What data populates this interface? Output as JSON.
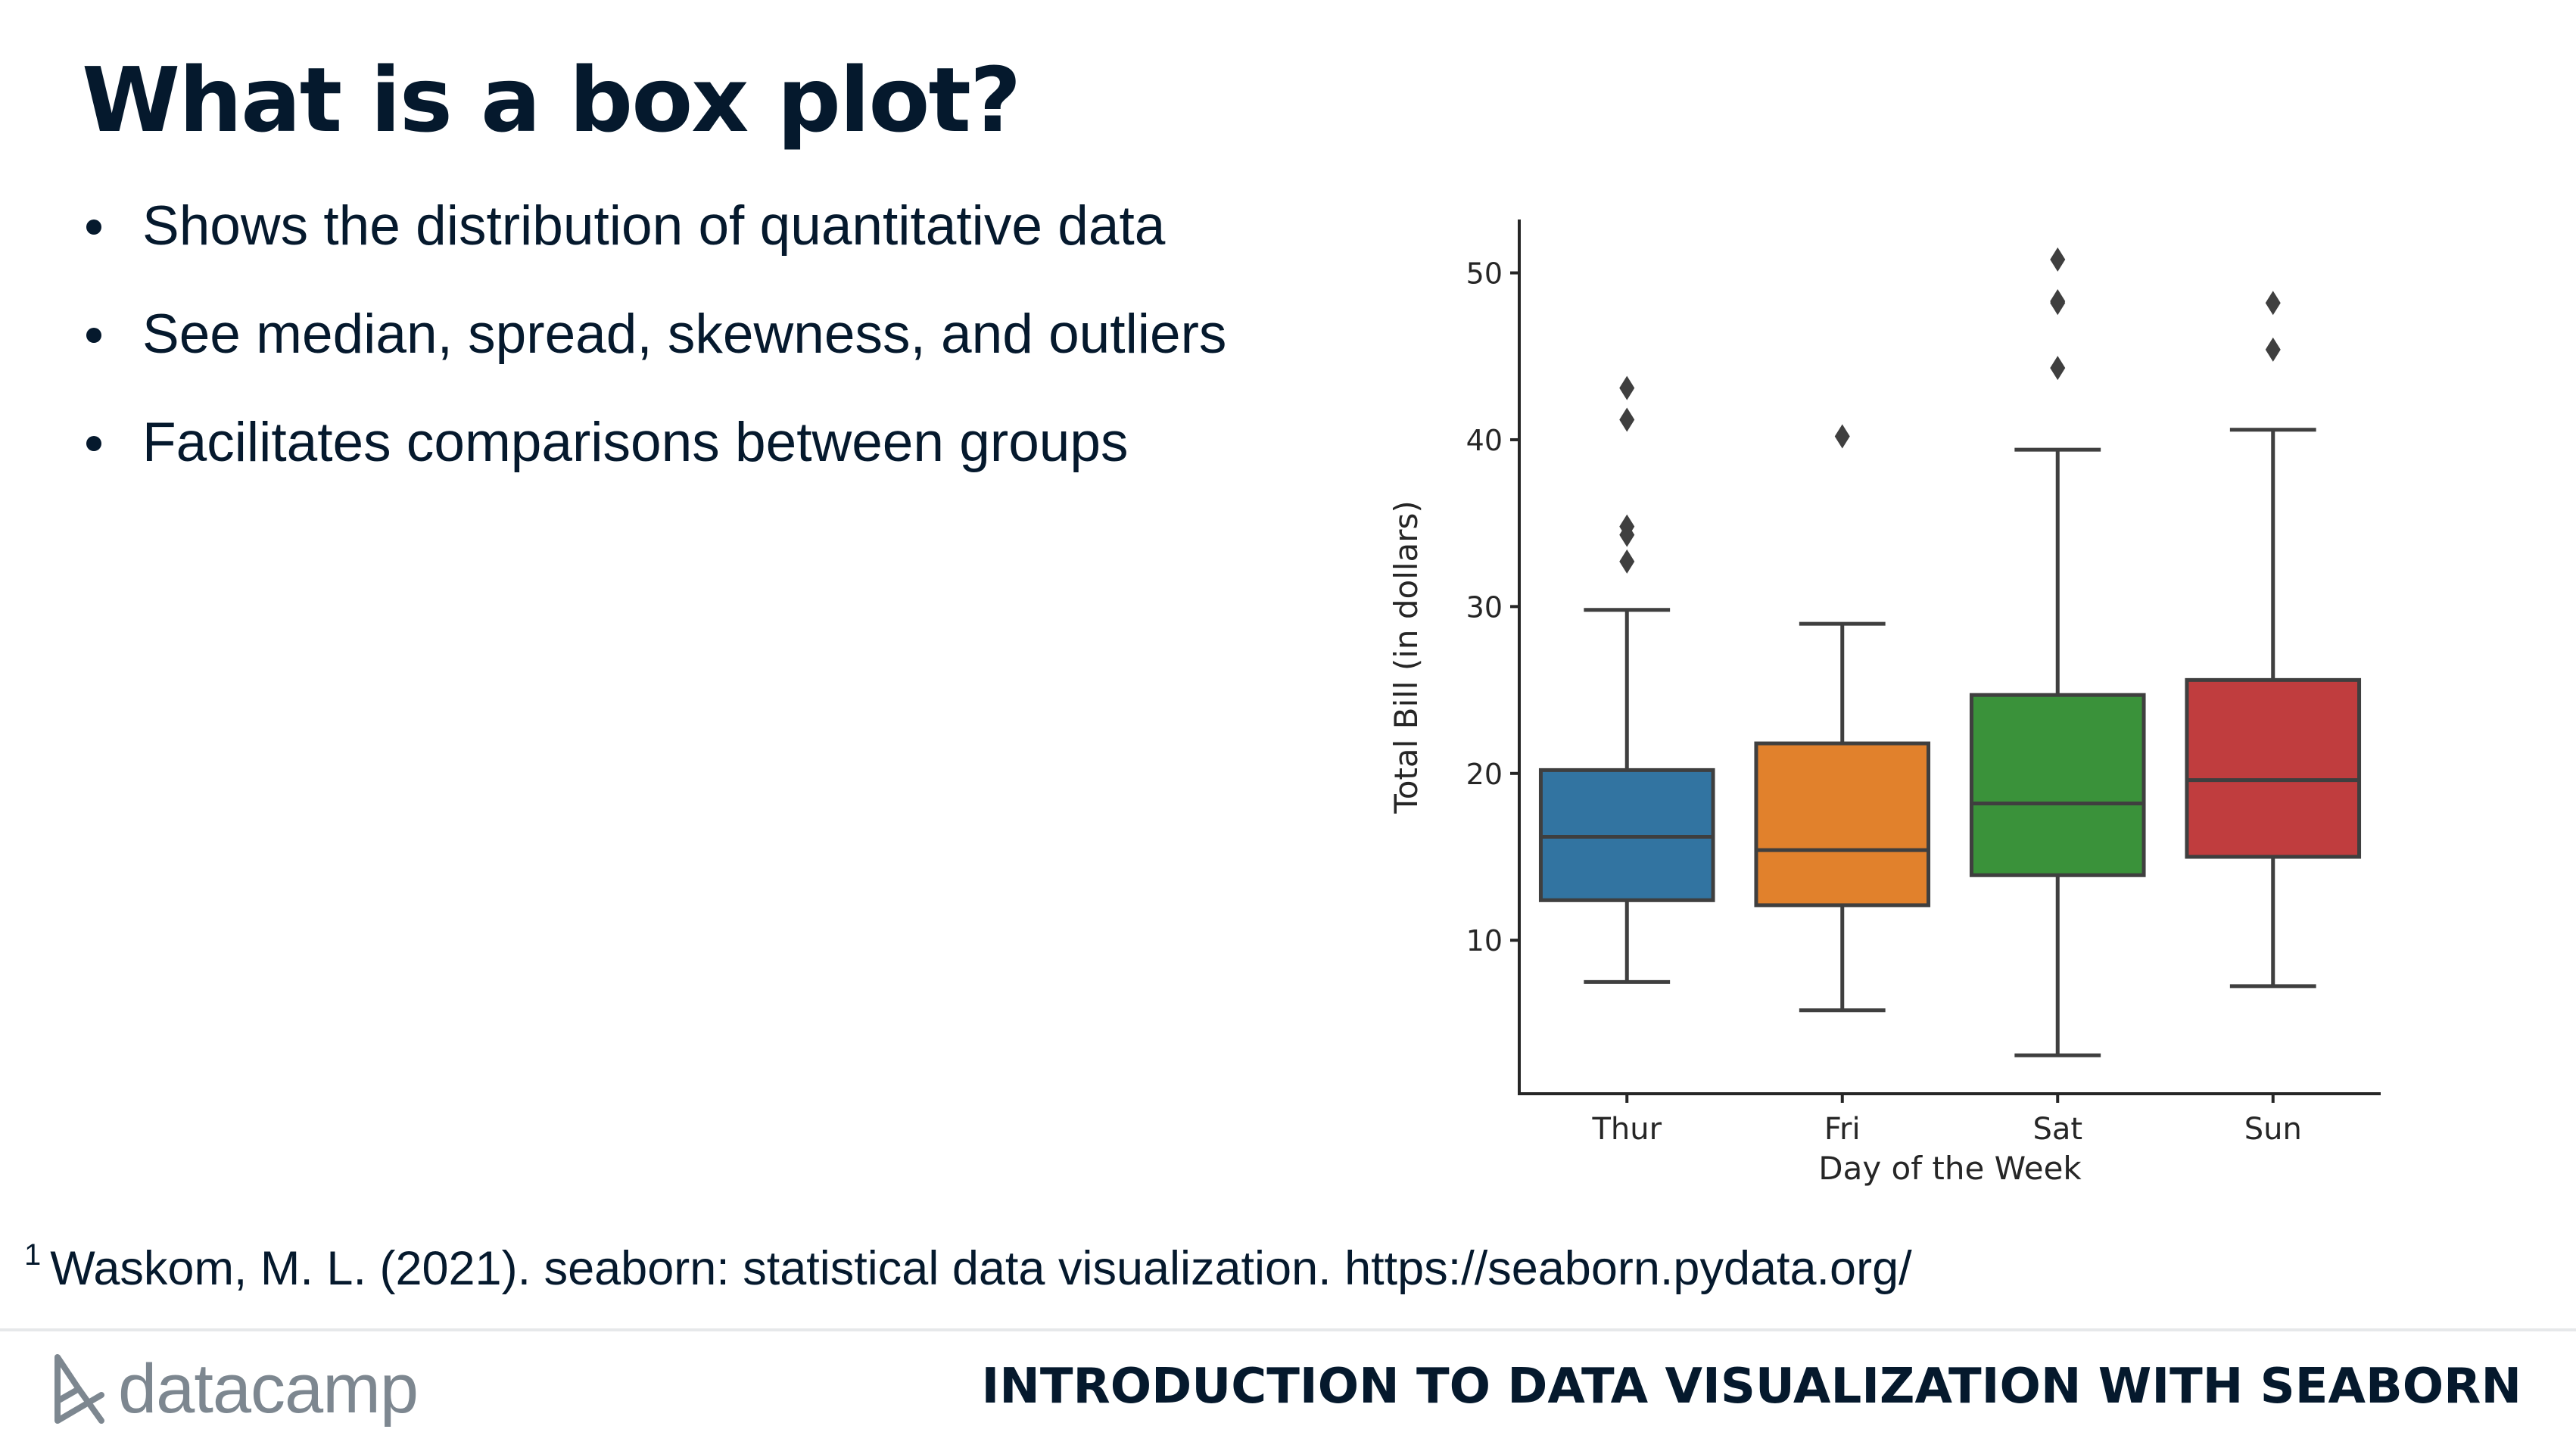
{
  "slide": {
    "title": "What is a box plot?",
    "bullets": [
      "Shows the distribution of quantitative data",
      "See median, spread, skewness, and outliers",
      "Facilitates comparisons between groups"
    ],
    "footnote_marker": "1",
    "footnote_text": "Waskom, M. L. (2021). seaborn: statistical data visualization. https://seaborn.pydata.org/"
  },
  "footer": {
    "logo_text": "datacamp",
    "course_title": "INTRODUCTION TO DATA VISUALIZATION WITH SEABORN"
  },
  "chart_data": {
    "type": "box",
    "xlabel": "Day of the Week",
    "ylabel": "Total Bill (in dollars)",
    "ylim": [
      0.8,
      53.2
    ],
    "yticks": [
      10,
      20,
      30,
      40,
      50
    ],
    "grid": false,
    "categories": [
      "Thur",
      "Fri",
      "Sat",
      "Sun"
    ],
    "colors": [
      "#3274a1",
      "#e1812c",
      "#3a923a",
      "#c03d3e"
    ],
    "boxes": [
      {
        "category": "Thur",
        "whisker_low": 7.5,
        "q1": 12.4,
        "median": 16.2,
        "q3": 20.2,
        "whisker_high": 29.8,
        "outliers": [
          32.7,
          34.3,
          34.8,
          41.2,
          43.1
        ]
      },
      {
        "category": "Fri",
        "whisker_low": 5.8,
        "q1": 12.1,
        "median": 15.4,
        "q3": 21.8,
        "whisker_high": 28.97,
        "outliers": [
          40.2
        ]
      },
      {
        "category": "Sat",
        "whisker_low": 3.1,
        "q1": 13.9,
        "median": 18.2,
        "q3": 24.7,
        "whisker_high": 39.4,
        "outliers": [
          44.3,
          48.2,
          48.3,
          50.8
        ]
      },
      {
        "category": "Sun",
        "whisker_low": 7.25,
        "q1": 15.0,
        "median": 19.6,
        "q3": 25.6,
        "whisker_high": 40.6,
        "outliers": [
          45.4,
          48.2
        ]
      }
    ]
  }
}
